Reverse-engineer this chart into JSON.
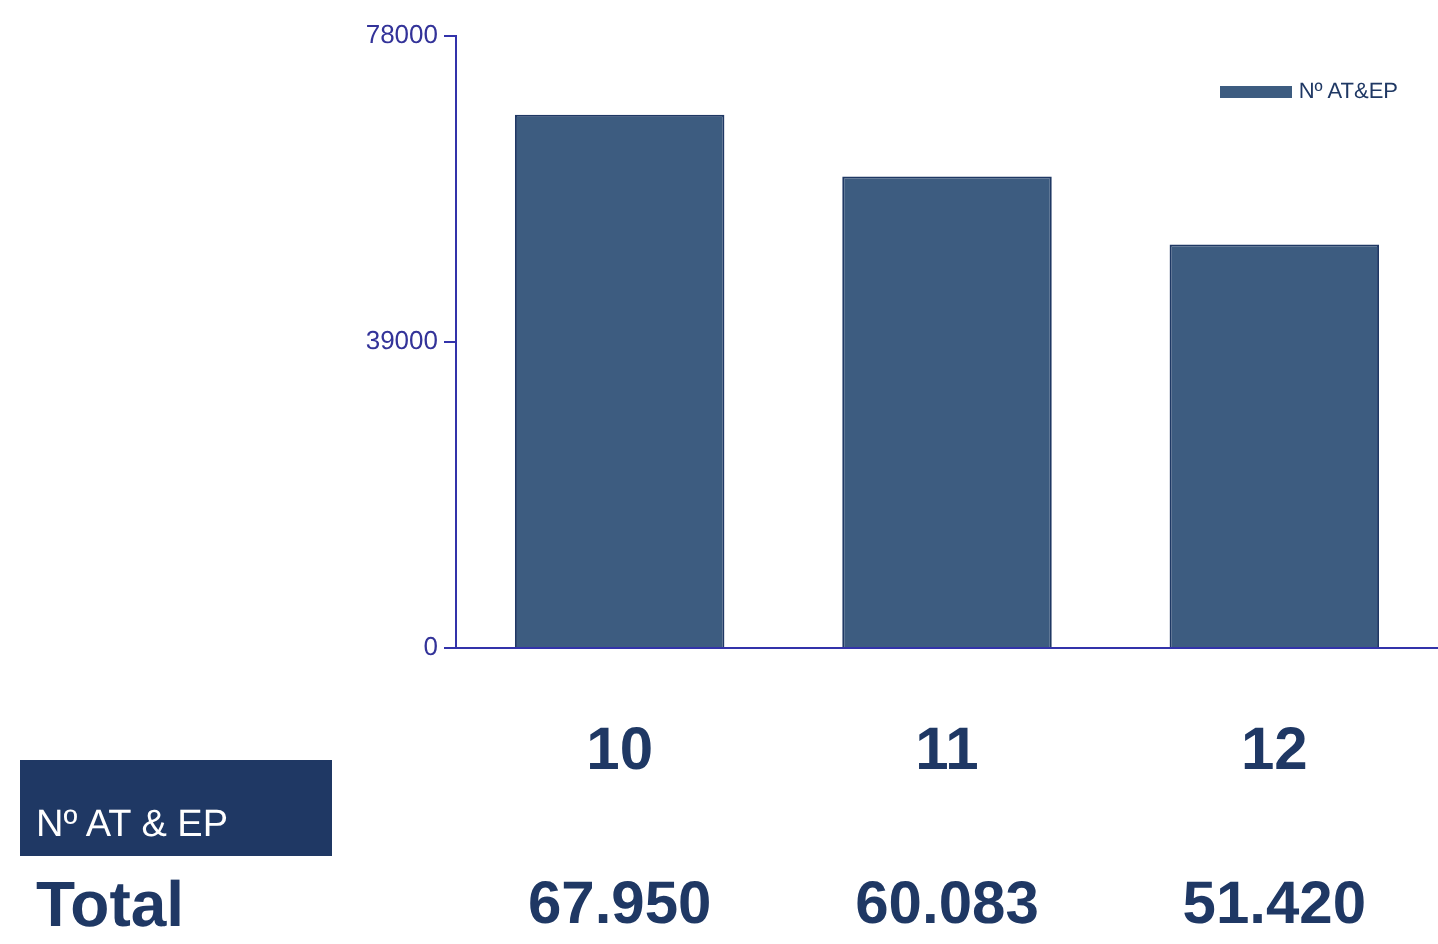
{
  "chart_data": {
    "type": "bar",
    "categories": [
      "10",
      "11",
      "12"
    ],
    "series": [
      {
        "name": "Nº AT&EP",
        "color": "#3d5c80",
        "values": [
          67950,
          60083,
          51420
        ],
        "value_labels": [
          "67.950",
          "60.083",
          "51.420"
        ]
      }
    ],
    "ylim": [
      0,
      78000
    ],
    "yticks": [
      0,
      39000,
      78000
    ],
    "grid": false,
    "legend": "top right",
    "annotations": [
      "Nº AT & EP",
      "Total"
    ]
  }
}
